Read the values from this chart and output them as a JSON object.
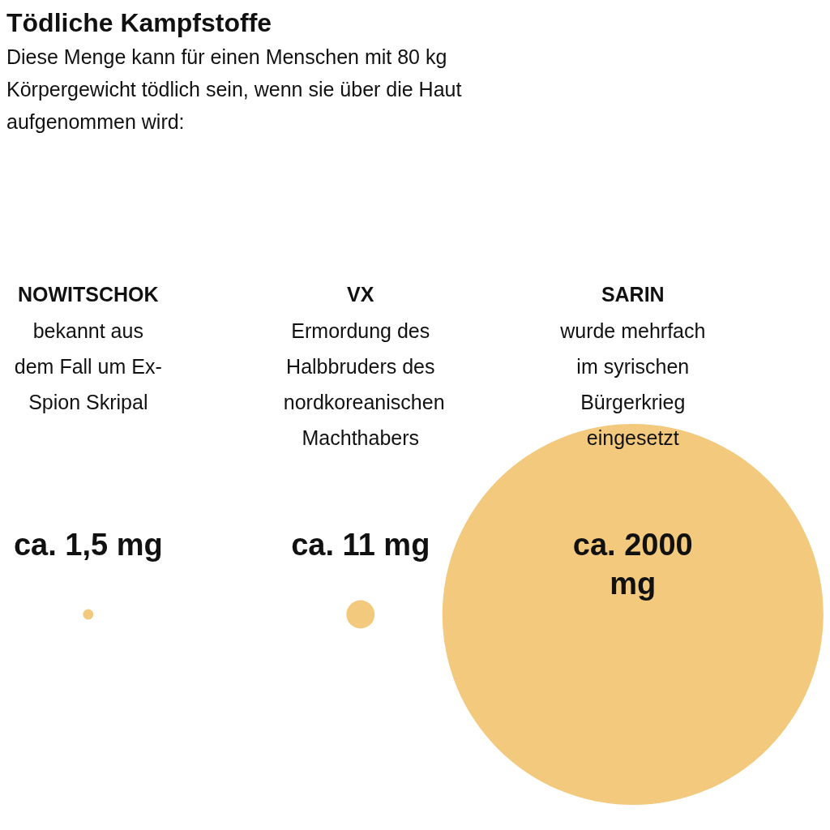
{
  "chart_data": {
    "type": "other",
    "title": "Tödliche Kampfstoffe",
    "subtitle": "Diese Menge kann für einen Menschen mit 80 kg Körpergewicht tödlich sein, wenn sie über die Haut aufgenommen wird:",
    "categories": [
      "NOWITSCHOK",
      "VX",
      "SARIN"
    ],
    "values": [
      1.5,
      11,
      2000
    ],
    "value_labels": [
      "ca. 1,5 mg",
      "ca. 11 mg",
      "ca. 2000 mg"
    ],
    "color": "#f2c97d",
    "annotations": [
      {
        "text": "bekannt aus dem Fall um Ex-Spion Skripal",
        "x": "NOWITSCHOK"
      },
      {
        "text": "Ermordung des Halbbruders des nordkoreanischen Machthabers",
        "x": "VX"
      },
      {
        "text": "wurde mehrfach im syrischen Bürgerkrieg eingesetzt",
        "x": "SARIN"
      }
    ]
  }
}
